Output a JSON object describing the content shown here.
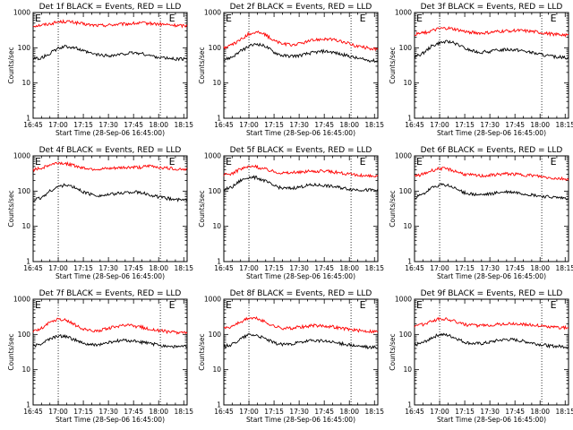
{
  "chart_data": [
    {
      "type": "line",
      "title": "Det 1f BLACK = Events, RED = LLD",
      "xlabel": "Start Time (28-Sep-06 16:45:00)",
      "ylabel": "Counts/sec",
      "x_ticks": [
        "16:45",
        "17:00",
        "17:15",
        "17:30",
        "17:45",
        "18:00",
        "18:15"
      ],
      "y_ticks": [
        "1",
        "10",
        "100",
        "1000"
      ],
      "log_y": true,
      "ylim": [
        1,
        1000
      ],
      "xlim": [
        0,
        92
      ],
      "annotations": [
        {
          "text": "E",
          "x": 0
        },
        {
          "text": "E",
          "x": 80
        }
      ],
      "vlines": [
        15,
        76
      ],
      "series": [
        {
          "color": "#ff0000",
          "x": [
            0,
            5,
            10,
            15,
            20,
            25,
            30,
            35,
            40,
            45,
            50,
            55,
            60,
            65,
            70,
            75,
            80,
            85,
            92
          ],
          "y": [
            420,
            440,
            480,
            540,
            560,
            520,
            470,
            440,
            430,
            440,
            460,
            470,
            490,
            500,
            490,
            470,
            450,
            430,
            420
          ]
        },
        {
          "color": "#000000",
          "x": [
            0,
            5,
            10,
            15,
            20,
            25,
            30,
            35,
            40,
            45,
            50,
            55,
            60,
            65,
            70,
            75,
            80,
            85,
            92
          ],
          "y": [
            48,
            52,
            70,
            95,
            110,
            100,
            80,
            68,
            62,
            60,
            62,
            68,
            72,
            68,
            60,
            54,
            50,
            48,
            48
          ]
        }
      ]
    },
    {
      "type": "line",
      "title": "Det 2f BLACK = Events, RED = LLD",
      "xlabel": "Start Time (28-Sep-06 16:45:00)",
      "ylabel": "Counts/sec",
      "x_ticks": [
        "16:45",
        "17:00",
        "17:15",
        "17:30",
        "17:45",
        "18:00",
        "18:15"
      ],
      "y_ticks": [
        "1",
        "10",
        "100",
        "1000"
      ],
      "log_y": true,
      "ylim": [
        1,
        1000
      ],
      "xlim": [
        0,
        92
      ],
      "annotations": [
        {
          "text": "E",
          "x": 0
        },
        {
          "text": "E",
          "x": 80
        }
      ],
      "vlines": [
        15,
        76
      ],
      "series": [
        {
          "color": "#ff0000",
          "x": [
            0,
            5,
            10,
            15,
            20,
            25,
            30,
            35,
            40,
            45,
            50,
            55,
            60,
            65,
            70,
            75,
            80,
            85,
            92
          ],
          "y": [
            100,
            120,
            170,
            250,
            280,
            230,
            160,
            130,
            120,
            130,
            150,
            170,
            180,
            170,
            150,
            130,
            110,
            100,
            90
          ]
        },
        {
          "color": "#000000",
          "x": [
            0,
            5,
            10,
            15,
            20,
            25,
            30,
            35,
            40,
            45,
            50,
            55,
            60,
            65,
            70,
            75,
            80,
            85,
            92
          ],
          "y": [
            45,
            55,
            80,
            110,
            130,
            110,
            75,
            60,
            58,
            60,
            68,
            75,
            80,
            75,
            65,
            58,
            50,
            45,
            42
          ]
        }
      ]
    },
    {
      "type": "line",
      "title": "Det 3f BLACK = Events, RED = LLD",
      "xlabel": "Start Time (28-Sep-06 16:45:00)",
      "ylabel": "Counts/sec",
      "x_ticks": [
        "16:45",
        "17:00",
        "17:15",
        "17:30",
        "17:45",
        "18:00",
        "18:15"
      ],
      "y_ticks": [
        "1",
        "10",
        "100",
        "1000"
      ],
      "log_y": true,
      "ylim": [
        1,
        1000
      ],
      "xlim": [
        0,
        92
      ],
      "annotations": [
        {
          "text": "E",
          "x": 0
        },
        {
          "text": "E",
          "x": 80
        }
      ],
      "vlines": [
        15,
        76
      ],
      "series": [
        {
          "color": "#ff0000",
          "x": [
            0,
            5,
            10,
            15,
            20,
            25,
            30,
            35,
            40,
            45,
            50,
            55,
            60,
            65,
            70,
            75,
            80,
            85,
            92
          ],
          "y": [
            240,
            260,
            300,
            350,
            360,
            330,
            290,
            270,
            260,
            270,
            290,
            300,
            310,
            300,
            290,
            270,
            250,
            240,
            230
          ]
        },
        {
          "color": "#000000",
          "x": [
            0,
            5,
            10,
            15,
            20,
            25,
            30,
            35,
            40,
            45,
            50,
            55,
            60,
            65,
            70,
            75,
            80,
            85,
            92
          ],
          "y": [
            55,
            70,
            110,
            140,
            150,
            130,
            95,
            80,
            75,
            78,
            85,
            90,
            88,
            82,
            72,
            65,
            58,
            55,
            52
          ]
        }
      ]
    },
    {
      "type": "line",
      "title": "Det 4f BLACK = Events, RED = LLD",
      "xlabel": "Start Time (28-Sep-06 16:45:00)",
      "ylabel": "Counts/sec",
      "x_ticks": [
        "16:45",
        "17:00",
        "17:15",
        "17:30",
        "17:45",
        "18:00",
        "18:15"
      ],
      "y_ticks": [
        "1",
        "10",
        "100",
        "1000"
      ],
      "log_y": true,
      "ylim": [
        1,
        1000
      ],
      "xlim": [
        0,
        92
      ],
      "annotations": [
        {
          "text": "E",
          "x": 0
        },
        {
          "text": "E",
          "x": 80
        }
      ],
      "vlines": [
        15,
        76
      ],
      "series": [
        {
          "color": "#ff0000",
          "x": [
            0,
            5,
            10,
            15,
            20,
            25,
            30,
            35,
            40,
            45,
            50,
            55,
            60,
            65,
            70,
            75,
            80,
            85,
            92
          ],
          "y": [
            400,
            450,
            560,
            640,
            600,
            520,
            460,
            430,
            420,
            430,
            450,
            470,
            480,
            470,
            520,
            480,
            450,
            430,
            420
          ]
        },
        {
          "color": "#000000",
          "x": [
            0,
            5,
            10,
            15,
            20,
            25,
            30,
            35,
            40,
            45,
            50,
            55,
            60,
            65,
            70,
            75,
            80,
            85,
            92
          ],
          "y": [
            55,
            65,
            100,
            135,
            150,
            125,
            95,
            80,
            75,
            78,
            85,
            92,
            95,
            88,
            78,
            68,
            62,
            58,
            55
          ]
        }
      ]
    },
    {
      "type": "line",
      "title": "Det 5f BLACK = Events, RED = LLD",
      "xlabel": "Start Time (28-Sep-06 16:45:00)",
      "ylabel": "Counts/sec",
      "x_ticks": [
        "16:45",
        "17:00",
        "17:15",
        "17:30",
        "17:45",
        "18:00",
        "18:15"
      ],
      "y_ticks": [
        "1",
        "10",
        "100",
        "1000"
      ],
      "log_y": true,
      "ylim": [
        1,
        1000
      ],
      "xlim": [
        0,
        92
      ],
      "annotations": [
        {
          "text": "E",
          "x": 0
        },
        {
          "text": "E",
          "x": 80
        }
      ],
      "vlines": [
        15,
        76
      ],
      "series": [
        {
          "color": "#ff0000",
          "x": [
            0,
            5,
            10,
            15,
            20,
            25,
            30,
            35,
            40,
            45,
            50,
            55,
            60,
            65,
            70,
            75,
            80,
            85,
            92
          ],
          "y": [
            280,
            320,
            420,
            500,
            480,
            420,
            360,
            330,
            330,
            340,
            360,
            370,
            370,
            350,
            330,
            300,
            280,
            270,
            260
          ]
        },
        {
          "color": "#000000",
          "x": [
            0,
            5,
            10,
            15,
            20,
            25,
            30,
            35,
            40,
            45,
            50,
            55,
            60,
            65,
            70,
            75,
            80,
            85,
            92
          ],
          "y": [
            110,
            130,
            200,
            250,
            240,
            190,
            140,
            120,
            120,
            130,
            145,
            150,
            145,
            135,
            125,
            115,
            110,
            108,
            105
          ]
        }
      ]
    },
    {
      "type": "line",
      "title": "Det 6f BLACK = Events, RED = LLD",
      "xlabel": "Start Time (28-Sep-06 16:45:00)",
      "ylabel": "Counts/sec",
      "x_ticks": [
        "16:45",
        "17:00",
        "17:15",
        "17:30",
        "17:45",
        "18:00",
        "18:15"
      ],
      "y_ticks": [
        "1",
        "10",
        "100",
        "1000"
      ],
      "log_y": true,
      "ylim": [
        1,
        1000
      ],
      "xlim": [
        0,
        92
      ],
      "annotations": [
        {
          "text": "E",
          "x": 0
        },
        {
          "text": "E",
          "x": 80
        }
      ],
      "vlines": [
        15,
        76
      ],
      "series": [
        {
          "color": "#ff0000",
          "x": [
            0,
            5,
            10,
            15,
            20,
            25,
            30,
            35,
            40,
            45,
            50,
            55,
            60,
            65,
            70,
            75,
            80,
            85,
            92
          ],
          "y": [
            260,
            300,
            380,
            440,
            420,
            360,
            300,
            280,
            270,
            280,
            300,
            310,
            300,
            290,
            280,
            260,
            240,
            230,
            220
          ]
        },
        {
          "color": "#000000",
          "x": [
            0,
            5,
            10,
            15,
            20,
            25,
            30,
            35,
            40,
            45,
            50,
            55,
            60,
            65,
            70,
            75,
            80,
            85,
            92
          ],
          "y": [
            65,
            80,
            120,
            150,
            145,
            115,
            90,
            80,
            78,
            82,
            90,
            95,
            92,
            85,
            78,
            72,
            68,
            65,
            62
          ]
        }
      ]
    },
    {
      "type": "line",
      "title": "Det 7f BLACK = Events, RED = LLD",
      "xlabel": "Start Time (28-Sep-06 16:45:00)",
      "ylabel": "Counts/sec",
      "x_ticks": [
        "16:45",
        "17:00",
        "17:15",
        "17:30",
        "17:45",
        "18:00",
        "18:15"
      ],
      "y_ticks": [
        "1",
        "10",
        "100",
        "1000"
      ],
      "log_y": true,
      "ylim": [
        1,
        1000
      ],
      "xlim": [
        0,
        92
      ],
      "annotations": [
        {
          "text": "E",
          "x": 0
        },
        {
          "text": "E",
          "x": 80
        }
      ],
      "vlines": [
        15,
        76
      ],
      "series": [
        {
          "color": "#ff0000",
          "x": [
            0,
            5,
            10,
            15,
            20,
            25,
            30,
            35,
            40,
            45,
            50,
            55,
            60,
            65,
            70,
            75,
            80,
            85,
            92
          ],
          "y": [
            120,
            150,
            220,
            270,
            250,
            190,
            140,
            125,
            130,
            150,
            170,
            180,
            175,
            160,
            140,
            130,
            120,
            115,
            115
          ]
        },
        {
          "color": "#000000",
          "x": [
            0,
            5,
            10,
            15,
            20,
            25,
            30,
            35,
            40,
            45,
            50,
            55,
            60,
            65,
            70,
            75,
            80,
            85,
            92
          ],
          "y": [
            45,
            55,
            75,
            90,
            88,
            70,
            55,
            50,
            52,
            58,
            65,
            68,
            65,
            60,
            55,
            50,
            47,
            45,
            45
          ]
        }
      ]
    },
    {
      "type": "line",
      "title": "Det 8f BLACK = Events, RED = LLD",
      "xlabel": "Start Time (28-Sep-06 16:45:00)",
      "ylabel": "Counts/sec",
      "x_ticks": [
        "16:45",
        "17:00",
        "17:15",
        "17:30",
        "17:45",
        "18:00",
        "18:15"
      ],
      "y_ticks": [
        "1",
        "10",
        "100",
        "1000"
      ],
      "log_y": true,
      "ylim": [
        1,
        1000
      ],
      "xlim": [
        0,
        92
      ],
      "annotations": [
        {
          "text": "E",
          "x": 0
        },
        {
          "text": "E",
          "x": 80
        }
      ],
      "vlines": [
        15,
        76
      ],
      "series": [
        {
          "color": "#ff0000",
          "x": [
            0,
            5,
            10,
            15,
            20,
            25,
            30,
            35,
            40,
            45,
            50,
            55,
            60,
            65,
            70,
            75,
            80,
            85,
            92
          ],
          "y": [
            150,
            170,
            230,
            290,
            280,
            220,
            170,
            150,
            150,
            160,
            170,
            180,
            175,
            165,
            150,
            140,
            130,
            125,
            120
          ]
        },
        {
          "color": "#000000",
          "x": [
            0,
            5,
            10,
            15,
            20,
            25,
            30,
            35,
            40,
            45,
            50,
            55,
            60,
            65,
            70,
            75,
            80,
            85,
            92
          ],
          "y": [
            45,
            52,
            75,
            100,
            95,
            75,
            58,
            52,
            54,
            58,
            64,
            68,
            65,
            60,
            55,
            50,
            46,
            44,
            42
          ]
        }
      ]
    },
    {
      "type": "line",
      "title": "Det 9f BLACK = Events, RED = LLD",
      "xlabel": "Start Time (28-Sep-06 16:45:00)",
      "ylabel": "Counts/sec",
      "x_ticks": [
        "16:45",
        "17:00",
        "17:15",
        "17:30",
        "17:45",
        "18:00",
        "18:15"
      ],
      "y_ticks": [
        "1",
        "10",
        "100",
        "1000"
      ],
      "log_y": true,
      "ylim": [
        1,
        1000
      ],
      "xlim": [
        0,
        92
      ],
      "annotations": [
        {
          "text": "E",
          "x": 0
        },
        {
          "text": "E",
          "x": 80
        }
      ],
      "vlines": [
        15,
        76
      ],
      "series": [
        {
          "color": "#ff0000",
          "x": [
            0,
            5,
            10,
            15,
            20,
            25,
            30,
            35,
            40,
            45,
            50,
            55,
            60,
            65,
            70,
            75,
            80,
            85,
            92
          ],
          "y": [
            170,
            190,
            240,
            280,
            270,
            230,
            190,
            180,
            180,
            185,
            195,
            200,
            200,
            195,
            185,
            175,
            165,
            160,
            155
          ]
        },
        {
          "color": "#000000",
          "x": [
            0,
            5,
            10,
            15,
            20,
            25,
            30,
            35,
            40,
            45,
            50,
            55,
            60,
            65,
            70,
            75,
            80,
            85,
            92
          ],
          "y": [
            50,
            58,
            80,
            100,
            95,
            78,
            60,
            55,
            55,
            60,
            68,
            72,
            70,
            64,
            58,
            52,
            48,
            46,
            45
          ]
        }
      ]
    }
  ]
}
